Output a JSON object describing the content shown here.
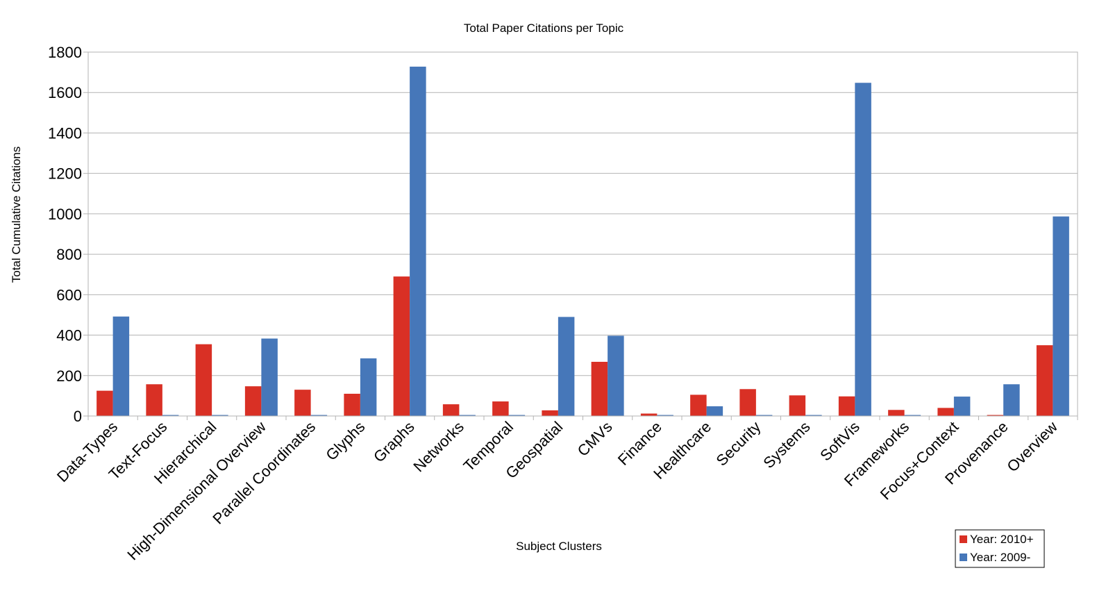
{
  "chart_data": {
    "type": "bar",
    "title": "Total Paper Citations per Topic",
    "xlabel": "Subject Clusters",
    "ylabel": "Total Cumulative Citations",
    "ylim": [
      0,
      1800
    ],
    "yticks": [
      "0",
      "200",
      "400",
      "600",
      "800",
      "1000",
      "1200",
      "1400",
      "1600",
      "1800"
    ],
    "grid": true,
    "legend_position": "bottom-right",
    "categories": [
      "Data-Types",
      "Text-Focus",
      "Hierarchical",
      "High-Dimensional Overview",
      "Parallel Coordinates",
      "Glyphs",
      "Graphs",
      "Networks",
      "Temporal",
      "Geospatial",
      "CMVs",
      "Finance",
      "Healthcare",
      "Security",
      "Systems",
      "SoftVis",
      "Frameworks",
      "Focus+Context",
      "Provenance",
      "Overview"
    ],
    "series": [
      {
        "name": "Year: 2010+",
        "color": "#d93025",
        "values": [
          125,
          157,
          355,
          147,
          130,
          110,
          690,
          58,
          72,
          28,
          268,
          12,
          105,
          133,
          102,
          97,
          30,
          40,
          5,
          350
        ]
      },
      {
        "name": "Year: 2009-",
        "color": "#4677b9",
        "values": [
          492,
          5,
          5,
          383,
          5,
          285,
          1728,
          5,
          5,
          490,
          397,
          5,
          48,
          5,
          5,
          1648,
          5,
          96,
          157,
          987
        ]
      }
    ]
  }
}
